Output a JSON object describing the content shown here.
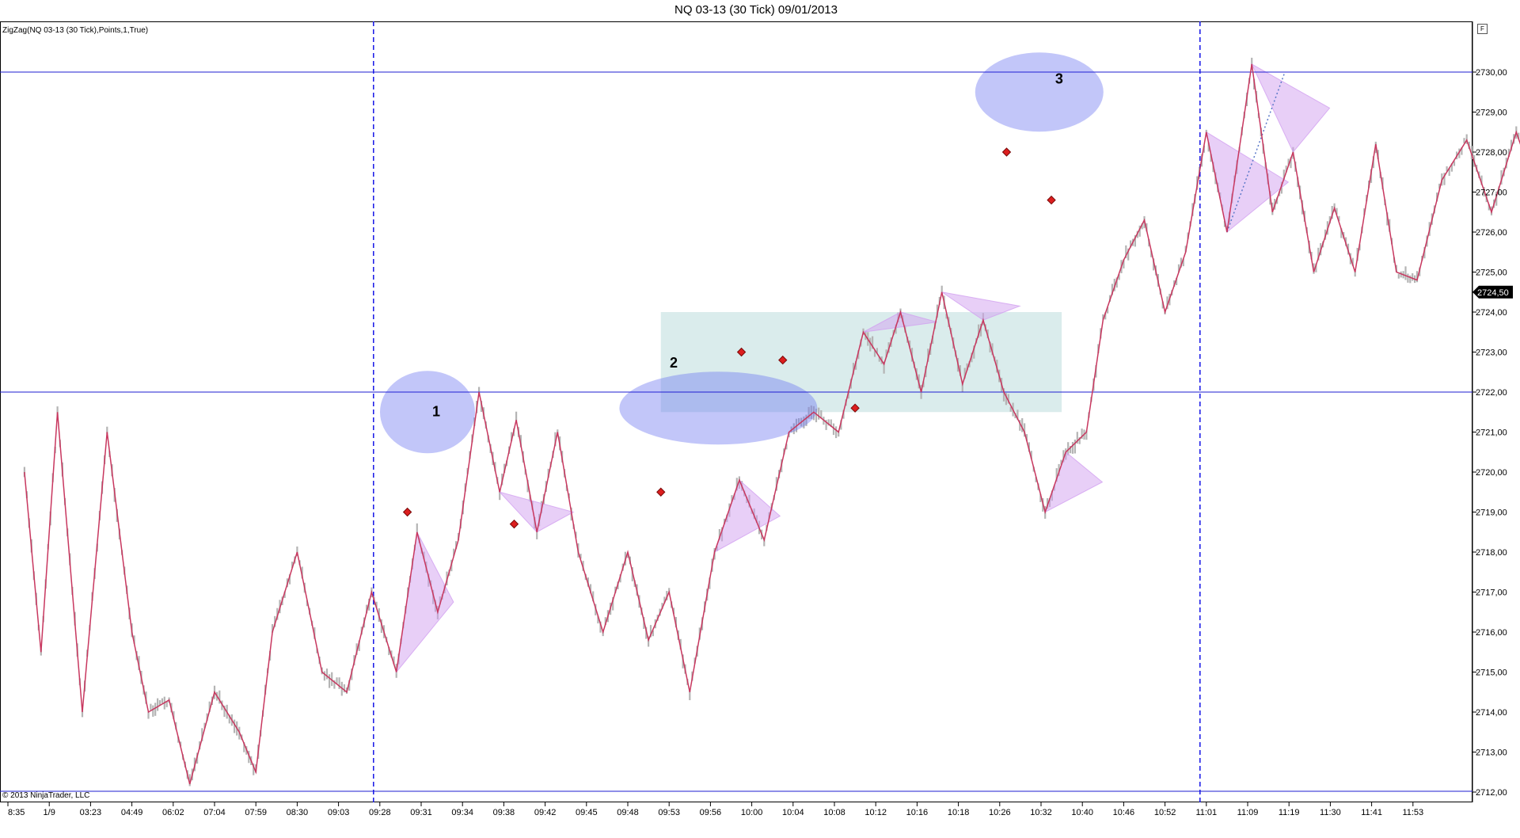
{
  "title": "NQ 03-13 (30 Tick)  09/01/2013",
  "indicator_label": "ZigZag(NQ 03-13 (30 Tick),Points,1,True)",
  "copyright": "© 2013 NinjaTrader, LLC",
  "panel_button": "F",
  "last_price_label": "2724,50",
  "annotations": [
    "1",
    "2",
    "3"
  ],
  "colors": {
    "price_bars": "#b4b4b4",
    "zigzag": "#c8375f",
    "horizontal_lines": "#1e1ed2",
    "session_lines": "#1414e6",
    "ellipses": "#6e78f0",
    "triangles": "#d2a0f0",
    "zone": "#bcdcdc",
    "signal_markers": "#dc1e1e"
  },
  "chart_data": {
    "type": "line",
    "title": "NQ 03-13 (30 Tick)  09/01/2013",
    "ylim": [
      2712,
      2730.5
    ],
    "y_ticks": [
      "2712,00",
      "2713,00",
      "2714,00",
      "2715,00",
      "2716,00",
      "2717,00",
      "2718,00",
      "2719,00",
      "2720,00",
      "2721,00",
      "2722,00",
      "2723,00",
      "2724,00",
      "2725,00",
      "2726,00",
      "2727,00",
      "2728,00",
      "2729,00",
      "2730,00"
    ],
    "x_ticks": [
      "8:35",
      "1/9",
      "03:23",
      "04:49",
      "06:02",
      "07:04",
      "07:59",
      "08:30",
      "09:03",
      "09:28",
      "09:31",
      "09:34",
      "09:38",
      "09:42",
      "09:45",
      "09:48",
      "09:53",
      "09:56",
      "10:00",
      "10:04",
      "10:08",
      "10:12",
      "10:16",
      "10:18",
      "10:26",
      "10:32",
      "10:40",
      "10:46",
      "10:52",
      "11:01",
      "11:09",
      "11:19",
      "11:30",
      "11:41",
      "11:53"
    ],
    "horizontal_lines": [
      2730,
      2722
    ],
    "session_breaks": [
      "09:28",
      "11:01"
    ],
    "last_price": 2724.5,
    "series": [
      {
        "name": "ZigZag(NQ 03-13 (30 Tick),Points,1,True)",
        "x": [
          0.4,
          0.8,
          1.2,
          1.8,
          2.4,
          3.0,
          3.4,
          3.9,
          4.4,
          5.0,
          5.6,
          6.0,
          6.4,
          7.0,
          7.6,
          8.2,
          8.8,
          9.4,
          9.9,
          10.4,
          10.9,
          11.4,
          11.9,
          12.3,
          12.8,
          13.3,
          13.8,
          14.4,
          15.0,
          15.5,
          16.0,
          16.5,
          17.1,
          17.7,
          18.3,
          18.9,
          19.5,
          20.1,
          20.7,
          21.2,
          21.6,
          22.1,
          22.6,
          23.1,
          23.6,
          24.1,
          24.6,
          25.1,
          25.6,
          26.1,
          26.5,
          27.0,
          27.5,
          28.0,
          28.5,
          29.0,
          29.5,
          30.1,
          30.6,
          31.1,
          31.6,
          32.1,
          32.6,
          33.1,
          33.6,
          34.1,
          34.7,
          35.3,
          35.9,
          36.5,
          37.0
        ],
        "y": [
          2720.0,
          2715.5,
          2721.5,
          2714.0,
          2721.0,
          2716.0,
          2714.0,
          2714.3,
          2712.2,
          2714.5,
          2713.5,
          2712.5,
          2716.0,
          2718.0,
          2715.0,
          2714.5,
          2717.0,
          2715.0,
          2718.5,
          2716.5,
          2718.3,
          2722.0,
          2719.5,
          2721.3,
          2718.5,
          2721.0,
          2718.0,
          2716.0,
          2718.0,
          2715.8,
          2717.0,
          2714.5,
          2718.0,
          2719.8,
          2718.3,
          2721.0,
          2721.5,
          2721.0,
          2723.5,
          2722.7,
          2724.0,
          2722.0,
          2724.5,
          2722.2,
          2723.8,
          2722.0,
          2721.0,
          2719.0,
          2720.5,
          2721.0,
          2723.8,
          2725.3,
          2726.3,
          2724.0,
          2725.5,
          2728.5,
          2726.0,
          2730.2,
          2726.5,
          2728.0,
          2725.0,
          2726.6,
          2725.0,
          2728.2,
          2725.0,
          2724.8,
          2727.3,
          2728.3,
          2726.5,
          2728.5,
          2727.0
        ]
      }
    ],
    "signal_markers": [
      {
        "x": "09:30",
        "y": 2719.0
      },
      {
        "x": "09:39",
        "y": 2718.7
      },
      {
        "x": "09:52",
        "y": 2719.5
      },
      {
        "x": "09:59",
        "y": 2723.0
      },
      {
        "x": "10:03",
        "y": 2722.8
      },
      {
        "x": "10:10",
        "y": 2721.6
      },
      {
        "x": "10:27",
        "y": 2728.0
      },
      {
        "x": "10:34",
        "y": 2726.8
      }
    ],
    "annotations": [
      {
        "label": "1",
        "x": "09:31",
        "y": 2721.5
      },
      {
        "label": "2",
        "x": "09:55",
        "y": 2722.3
      },
      {
        "label": "3",
        "x": "10:29",
        "y": 2729.4
      }
    ],
    "zone": {
      "x_start": "09:52",
      "x_end": "10:36",
      "y_low": 2721.5,
      "y_high": 2724.0
    },
    "grid": false
  }
}
